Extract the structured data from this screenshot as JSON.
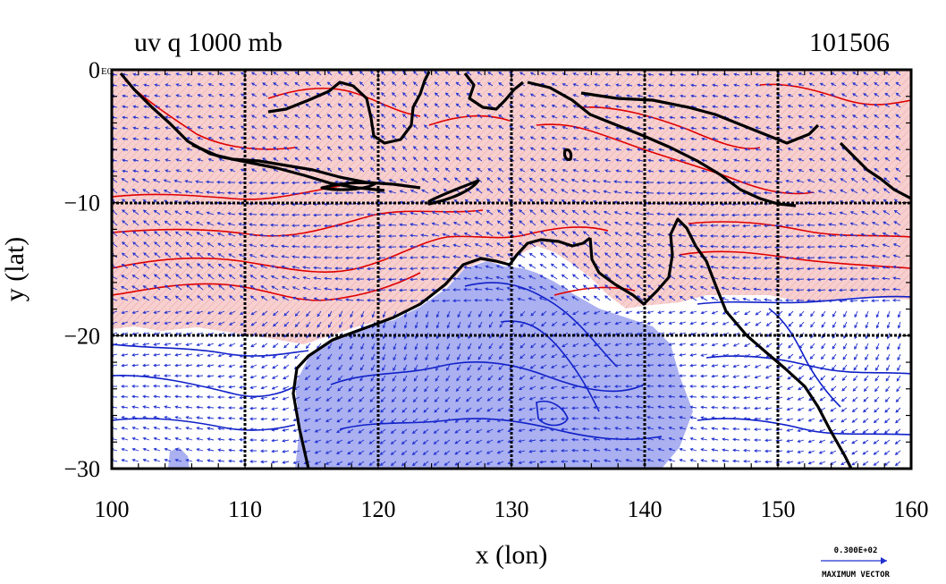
{
  "chart_data": {
    "type": "map",
    "title": "uv q 1000 mb",
    "timestamp": "101506",
    "xlabel": "x (lon)",
    "ylabel": "y (lat)",
    "xlim": [
      100,
      160
    ],
    "ylim": [
      -30,
      0
    ],
    "xticks": [
      {
        "value": 100,
        "label": "100"
      },
      {
        "value": 110,
        "label": "110"
      },
      {
        "value": 120,
        "label": "120"
      },
      {
        "value": 130,
        "label": "130"
      },
      {
        "value": 140,
        "label": "140"
      },
      {
        "value": 150,
        "label": "150"
      },
      {
        "value": 160,
        "label": "160"
      }
    ],
    "yticks": [
      {
        "value": -30,
        "label": "−30"
      },
      {
        "value": -20,
        "label": "−20"
      },
      {
        "value": -10,
        "label": "−10"
      },
      {
        "value": 0,
        "label": "0"
      }
    ],
    "corner_label": "E0",
    "grid": true,
    "legend": {
      "vector_value": "0.300E+02",
      "vector_label": "MAXIMUM VECTOR",
      "placement": "bottom-right"
    },
    "colors": {
      "moist_fill": "#f7cfcf",
      "moist_contour": "#e00000",
      "dry_fill": "#aab0f0",
      "dry_contour": "#1020c8",
      "vector": "#2030d0",
      "coastline": "#000000",
      "grid": "#000000"
    }
  }
}
